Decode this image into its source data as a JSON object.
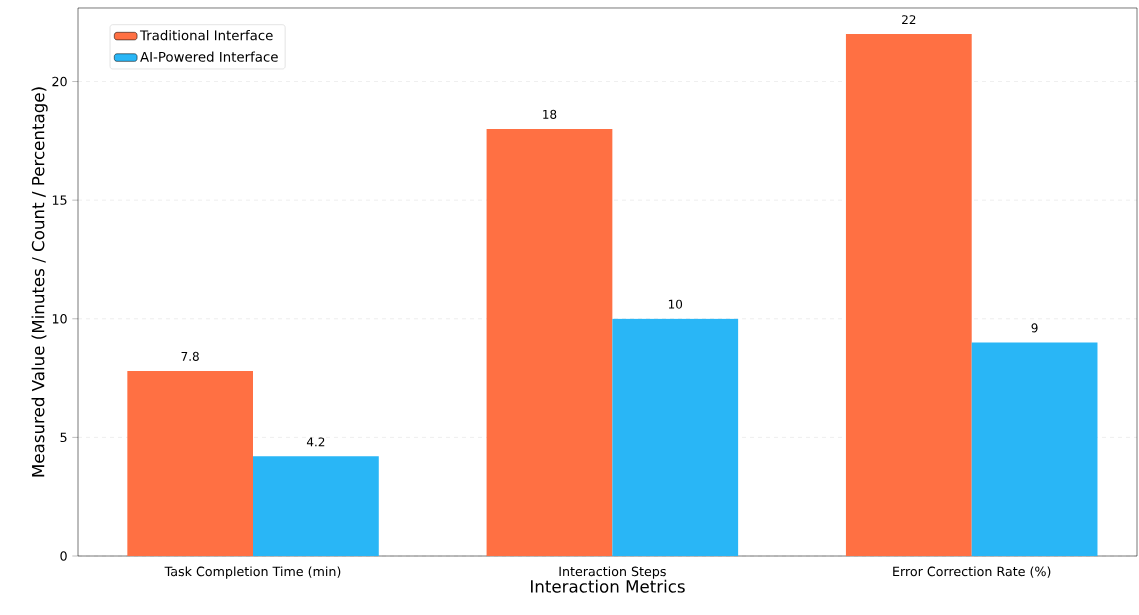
{
  "chart_data": {
    "type": "bar",
    "xlabel": "Interaction Metrics",
    "ylabel": "Measured Value (Minutes / Count / Percentage)",
    "categories": [
      "Task Completion Time (min)",
      "Interaction Steps",
      "Error Correction Rate (%)"
    ],
    "series": [
      {
        "name": "Traditional Interface",
        "color": "#ff7043",
        "values": [
          7.8,
          18,
          22
        ]
      },
      {
        "name": "AI-Powered Interface",
        "color": "#29b6f6",
        "values": [
          4.2,
          10,
          9
        ]
      }
    ],
    "ylim": [
      0,
      23.1
    ],
    "yticks": [
      0,
      5,
      10,
      15,
      20
    ],
    "grid": "y",
    "legend": "top left",
    "data_labels": true
  }
}
